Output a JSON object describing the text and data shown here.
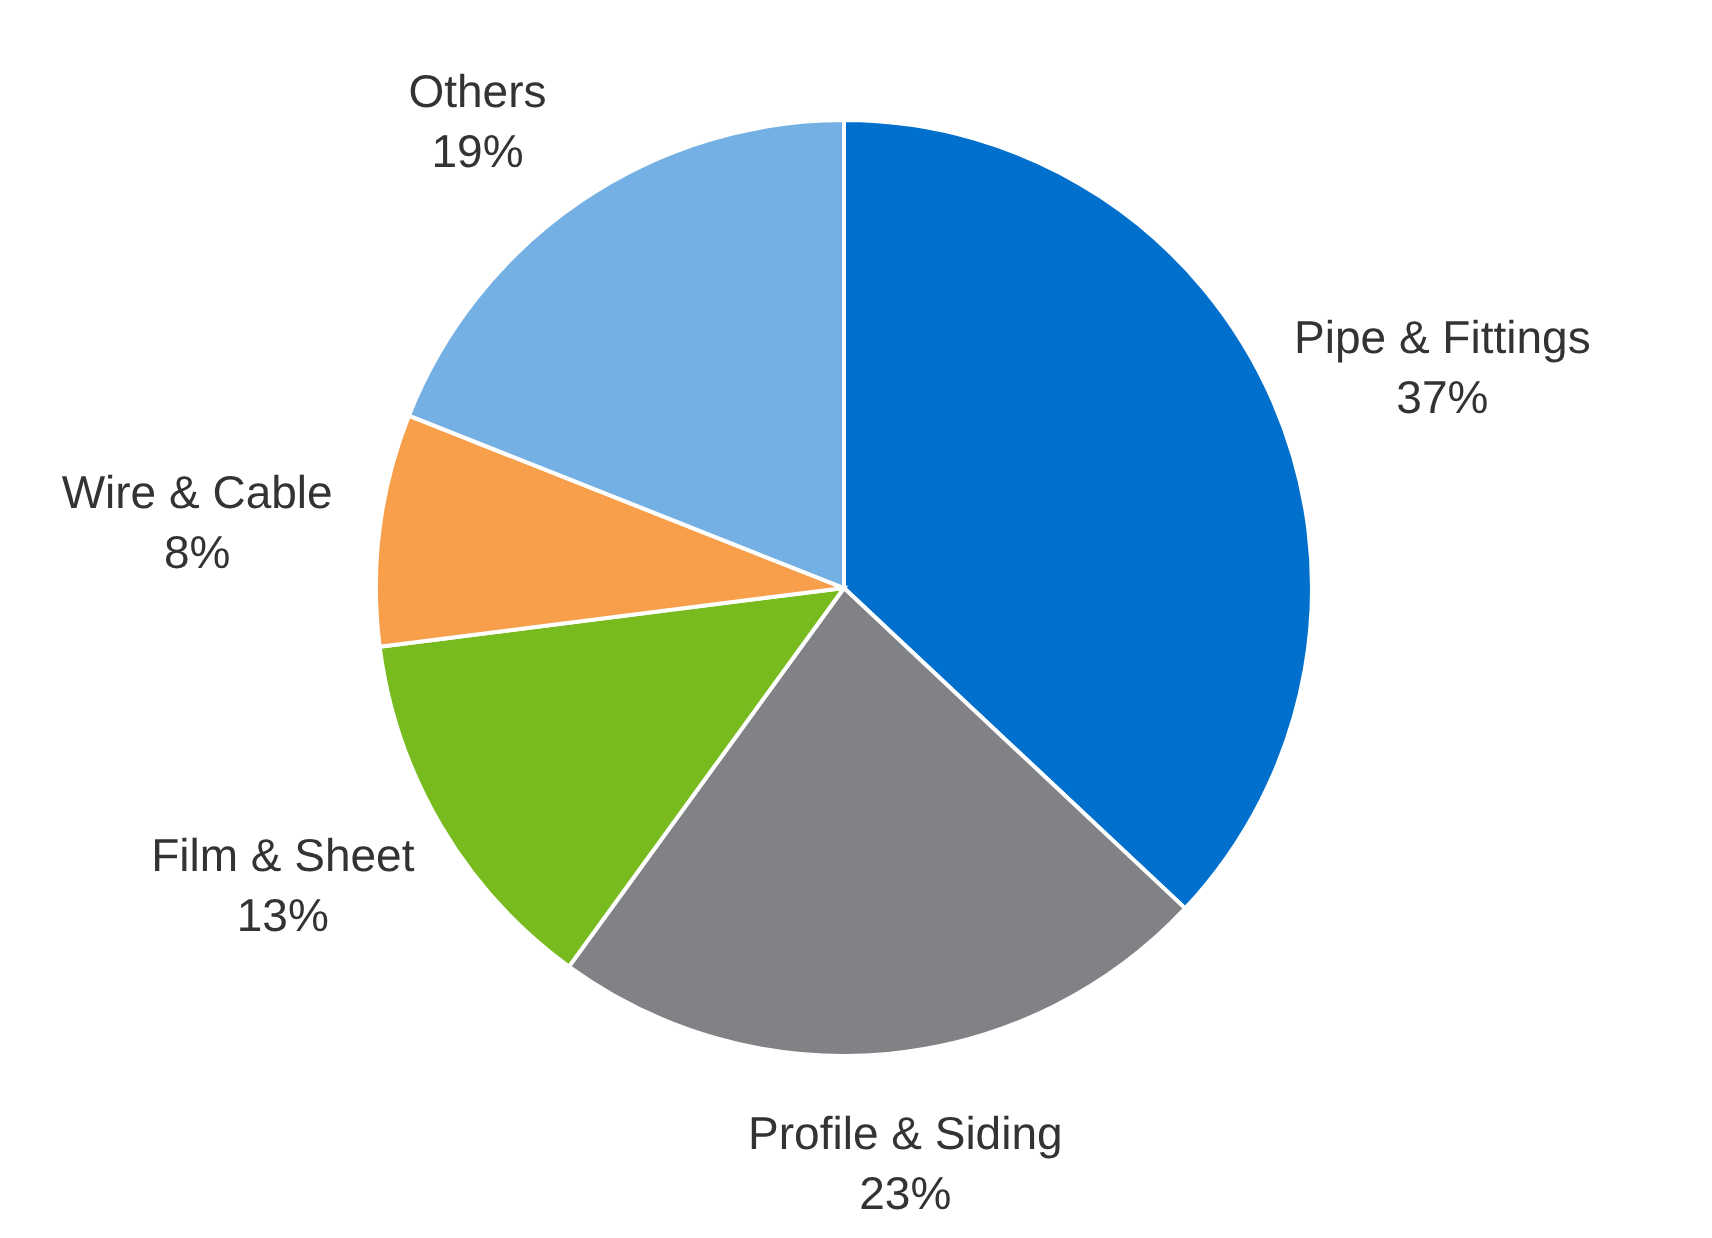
{
  "chart_data": {
    "type": "pie",
    "categories": [
      "Pipe & Fittings",
      "Profile & Siding",
      "Film & Sheet",
      "Wire & Cable",
      "Others"
    ],
    "values": [
      37,
      23,
      13,
      8,
      19
    ],
    "value_labels": [
      "37%",
      "23%",
      "13%",
      "8%",
      "19%"
    ],
    "colors": [
      "#0070cc",
      "#808285",
      "#77bb1f",
      "#f79f4b",
      "#74b0e3"
    ],
    "legend": false
  }
}
